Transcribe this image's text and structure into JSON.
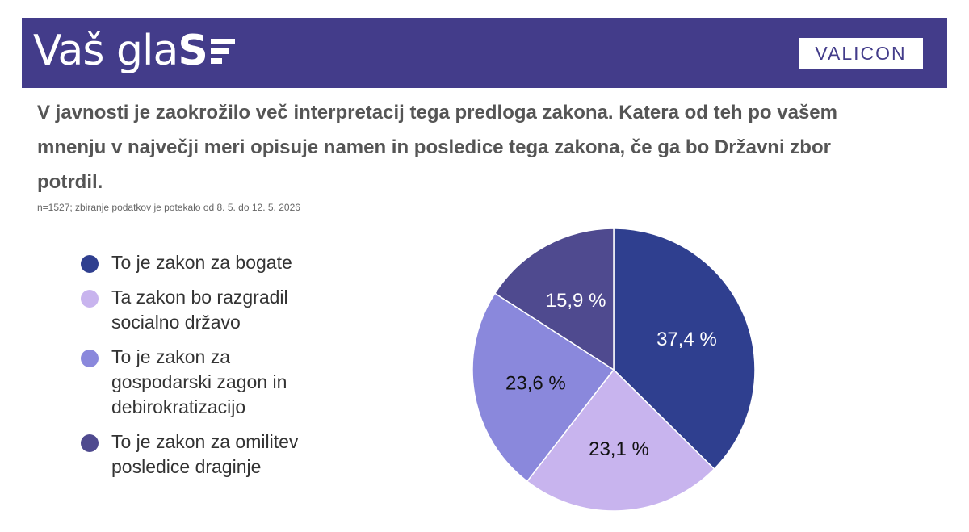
{
  "header": {
    "brand": "Vaš glaS",
    "brand_text": "Vaš gla",
    "brand_s": "S",
    "partner_logo": "VALICON",
    "background_color": "#433c8a"
  },
  "question": "V javnosti je zaokrožilo več interpretacij tega predloga zakona.  Katera od teh po vašem mnenju v največji meri opisuje namen in posledice tega zakona, če ga bo Državni zbor potrdil.",
  "note": "n=1527; zbiranje podatkov je potekalo od 8. 5. do 12. 5. 2026",
  "chart_data": {
    "type": "pie",
    "title": "",
    "legend_position": "left",
    "unit": "%",
    "slices": [
      {
        "label": "To je zakon za bogate",
        "value": 37.4,
        "display": "37,4 %",
        "color": "#2f3f8f",
        "text_color": "#ffffff"
      },
      {
        "label": "Ta zakon bo razgradil socialno državo",
        "value": 23.1,
        "display": "23,1 %",
        "color": "#c8b4ee",
        "text_color": "#111111"
      },
      {
        "label": "To je zakon za gospodarski zagon in debirokratizacijo",
        "value": 23.6,
        "display": "23,6 %",
        "color": "#8a88dc",
        "text_color": "#111111"
      },
      {
        "label": "To je zakon za omilitev posledice draginje",
        "value": 15.9,
        "display": "15,9 %",
        "color": "#4f4a8f",
        "text_color": "#ffffff"
      }
    ]
  }
}
